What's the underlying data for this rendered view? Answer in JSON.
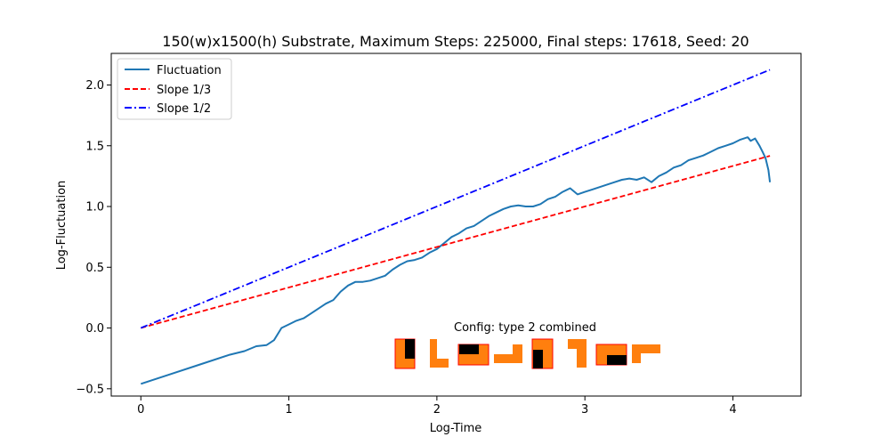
{
  "chart_data": {
    "type": "line",
    "title": "150(w)x1500(h) Substrate, Maximum Steps: 225000, Final steps: 17618, Seed: 20",
    "xlabel": "Log-Time",
    "ylabel": "Log-Fluctuation",
    "xlim": [
      -0.2,
      4.46
    ],
    "ylim": [
      -0.56,
      2.26
    ],
    "xticks": [
      0,
      1,
      2,
      3,
      4
    ],
    "xtick_labels": [
      "0",
      "1",
      "2",
      "3",
      "4"
    ],
    "yticks": [
      -0.5,
      0.0,
      0.5,
      1.0,
      1.5,
      2.0
    ],
    "ytick_labels": [
      "−0.5",
      "0.0",
      "0.5",
      "1.0",
      "1.5",
      "2.0"
    ],
    "grid": false,
    "legend_position": "top-left",
    "series": [
      {
        "name": "Fluctuation",
        "style": "solid",
        "color": "#1f77b4",
        "x": [
          0,
          0.2,
          0.4,
          0.6,
          0.7,
          0.78,
          0.85,
          0.9,
          0.95,
          1.0,
          1.05,
          1.1,
          1.15,
          1.2,
          1.25,
          1.3,
          1.35,
          1.4,
          1.45,
          1.5,
          1.55,
          1.6,
          1.65,
          1.7,
          1.75,
          1.8,
          1.85,
          1.9,
          1.95,
          2.0,
          2.05,
          2.1,
          2.15,
          2.2,
          2.25,
          2.3,
          2.35,
          2.4,
          2.45,
          2.5,
          2.55,
          2.6,
          2.65,
          2.7,
          2.75,
          2.8,
          2.85,
          2.9,
          2.95,
          3.0,
          3.05,
          3.1,
          3.15,
          3.2,
          3.25,
          3.3,
          3.35,
          3.4,
          3.45,
          3.5,
          3.55,
          3.6,
          3.65,
          3.7,
          3.75,
          3.8,
          3.85,
          3.9,
          3.95,
          4.0,
          4.05,
          4.1,
          4.12,
          4.15,
          4.18,
          4.2,
          4.22,
          4.24,
          4.25
        ],
        "y": [
          -0.46,
          -0.38,
          -0.3,
          -0.22,
          -0.19,
          -0.15,
          -0.14,
          -0.1,
          0.0,
          0.03,
          0.06,
          0.08,
          0.12,
          0.16,
          0.2,
          0.23,
          0.3,
          0.35,
          0.38,
          0.38,
          0.39,
          0.41,
          0.43,
          0.48,
          0.52,
          0.55,
          0.56,
          0.58,
          0.62,
          0.65,
          0.7,
          0.75,
          0.78,
          0.82,
          0.84,
          0.88,
          0.92,
          0.95,
          0.98,
          1.0,
          1.01,
          1.0,
          1.0,
          1.02,
          1.06,
          1.08,
          1.12,
          1.15,
          1.1,
          1.12,
          1.14,
          1.16,
          1.18,
          1.2,
          1.22,
          1.23,
          1.22,
          1.24,
          1.2,
          1.25,
          1.28,
          1.32,
          1.34,
          1.38,
          1.4,
          1.42,
          1.45,
          1.48,
          1.5,
          1.52,
          1.55,
          1.57,
          1.54,
          1.56,
          1.5,
          1.45,
          1.4,
          1.3,
          1.2
        ]
      },
      {
        "name": "Slope 1/3",
        "style": "dashed",
        "color": "#ff0000",
        "x": [
          0,
          4.25
        ],
        "y": [
          0,
          1.4167
        ]
      },
      {
        "name": "Slope 1/2",
        "style": "dashdot",
        "color": "#0000ff",
        "x": [
          0,
          4.25
        ],
        "y": [
          0,
          2.125
        ]
      }
    ],
    "annotation": {
      "text": "Config:  type 2 combined",
      "orange": "#ff7f0e",
      "border": "#ff0000",
      "black": "#000000"
    }
  }
}
